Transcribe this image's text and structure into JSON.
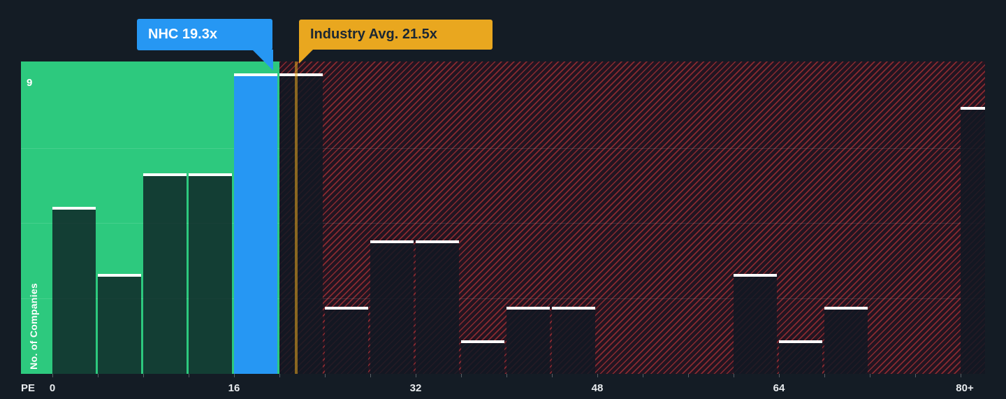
{
  "colors": {
    "background": "#141c25",
    "below_zone_green": "#2dc97e",
    "company_blue": "#2697f3",
    "industry_amber": "#e9a71f",
    "above_zone_hatch_red": "#e03c3c",
    "bar_cap_white": "#ffffff",
    "industry_callout_text": "#1b2733"
  },
  "chart_data": {
    "type": "bar",
    "subtype": "histogram",
    "xlabel": "PE",
    "ylabel": "No. of Companies",
    "y_max_label": "9",
    "ylim": [
      0,
      9
    ],
    "x_tick_labels": [
      "0",
      "16",
      "32",
      "48",
      "64",
      "80+"
    ],
    "bin_width_pe": 4,
    "bins": [
      {
        "x0": 0,
        "label": "0-4",
        "count": 5,
        "role": "below"
      },
      {
        "x0": 4,
        "label": "4-8",
        "count": 3,
        "role": "below"
      },
      {
        "x0": 8,
        "label": "8-12",
        "count": 6,
        "role": "below"
      },
      {
        "x0": 12,
        "label": "12-16",
        "count": 6,
        "role": "below"
      },
      {
        "x0": 16,
        "label": "16-20",
        "count": 9,
        "role": "company"
      },
      {
        "x0": 20,
        "label": "20-24",
        "count": 9,
        "role": "above"
      },
      {
        "x0": 24,
        "label": "24-28",
        "count": 2,
        "role": "above"
      },
      {
        "x0": 28,
        "label": "28-32",
        "count": 4,
        "role": "above"
      },
      {
        "x0": 32,
        "label": "32-36",
        "count": 4,
        "role": "above"
      },
      {
        "x0": 36,
        "label": "36-40",
        "count": 1,
        "role": "above"
      },
      {
        "x0": 40,
        "label": "40-44",
        "count": 2,
        "role": "above"
      },
      {
        "x0": 44,
        "label": "44-48",
        "count": 2,
        "role": "above"
      },
      {
        "x0": 48,
        "label": "48-52",
        "count": 0,
        "role": "above"
      },
      {
        "x0": 52,
        "label": "52-56",
        "count": 0,
        "role": "above"
      },
      {
        "x0": 56,
        "label": "56-60",
        "count": 0,
        "role": "above"
      },
      {
        "x0": 60,
        "label": "60-64",
        "count": 3,
        "role": "above"
      },
      {
        "x0": 64,
        "label": "64-68",
        "count": 1,
        "role": "above"
      },
      {
        "x0": 68,
        "label": "68-72",
        "count": 2,
        "role": "above"
      },
      {
        "x0": 72,
        "label": "72-76",
        "count": 0,
        "role": "above"
      },
      {
        "x0": 76,
        "label": "76-80",
        "count": 0,
        "role": "above"
      },
      {
        "x0": 80,
        "label": "80+",
        "count": 8,
        "role": "above"
      }
    ],
    "company_marker": {
      "name": "NHC",
      "pe": 19.3,
      "label": "NHC 19.3x"
    },
    "industry_avg": {
      "pe": 21.5,
      "label": "Industry Avg. 21.5x"
    },
    "zones": {
      "below_industry": "solid green region, PE 0 to 20",
      "above_industry": "red diagonal hatched region, PE 20 to 80+"
    }
  }
}
